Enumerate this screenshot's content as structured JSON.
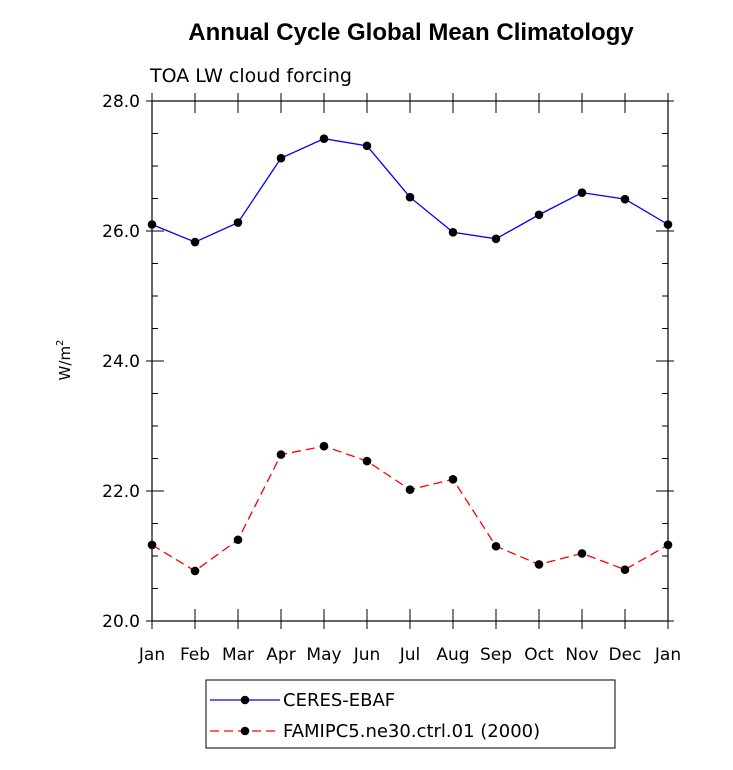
{
  "chart_data": {
    "type": "line",
    "title": "Annual Cycle Global Mean Climatology",
    "subtitle": "TOA LW cloud forcing",
    "ylabel": "W/m",
    "ylabel_superscript": "2",
    "xlabel": "",
    "categories": [
      "Jan",
      "Feb",
      "Mar",
      "Apr",
      "May",
      "Jun",
      "Jul",
      "Aug",
      "Sep",
      "Oct",
      "Nov",
      "Dec",
      "Jan"
    ],
    "ylim": [
      20.0,
      28.0
    ],
    "yticks": [
      "20.0",
      "22.0",
      "24.0",
      "26.0",
      "28.0"
    ],
    "grid": false,
    "legend_position": "bottom",
    "series": [
      {
        "name": "CERES-EBAF",
        "color": "#0000ff",
        "dash": "solid",
        "values": [
          26.1,
          25.83,
          26.13,
          27.12,
          27.42,
          27.31,
          26.52,
          25.98,
          25.88,
          26.25,
          26.59,
          26.49,
          26.1
        ]
      },
      {
        "name": "FAMIPC5.ne30.ctrl.01 (2000)",
        "color": "#ff0000",
        "dash": "dashed",
        "values": [
          21.17,
          20.77,
          21.25,
          22.56,
          22.69,
          22.46,
          22.02,
          22.18,
          21.15,
          20.87,
          21.04,
          20.79,
          21.17
        ]
      }
    ]
  }
}
